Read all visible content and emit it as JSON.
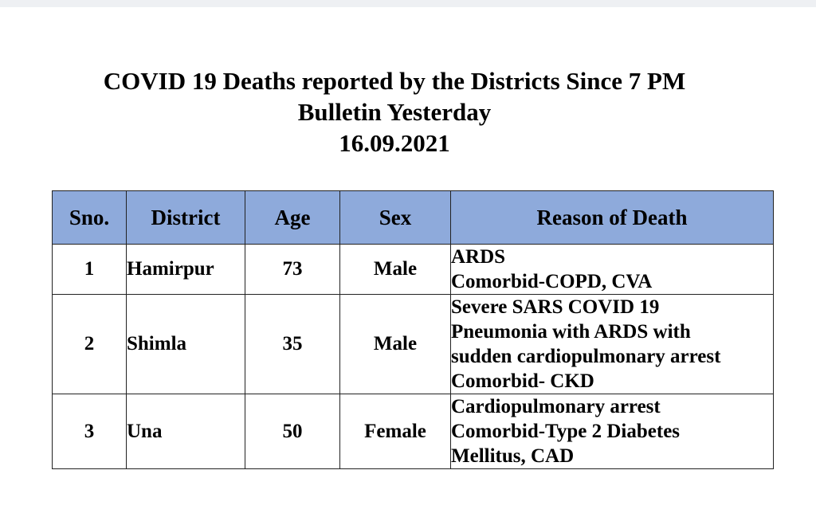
{
  "title": {
    "line1": "COVID 19 Deaths reported by the Districts Since 7 PM",
    "line2": "Bulletin Yesterday",
    "date": "16.09.2021"
  },
  "table": {
    "headers": [
      "Sno.",
      "District",
      "Age",
      "Sex",
      "Reason of Death"
    ],
    "rows": [
      {
        "sno": "1",
        "district": "Hamirpur",
        "age": "73",
        "sex": "Male",
        "reason_lines": [
          "ARDS",
          "Comorbid-COPD, CVA"
        ]
      },
      {
        "sno": "2",
        "district": "Shimla",
        "age": "35",
        "sex": "Male",
        "reason_lines": [
          "Severe SARS COVID 19",
          "Pneumonia with ARDS with",
          "sudden cardiopulmonary arrest",
          "Comorbid- CKD"
        ]
      },
      {
        "sno": "3",
        "district": "Una",
        "age": "50",
        "sex": "Female",
        "reason_lines": [
          "Cardiopulmonary arrest",
          "Comorbid-Type 2 Diabetes",
          "Mellitus, CAD"
        ]
      }
    ]
  },
  "colors": {
    "header_fill": "#8eaadb",
    "top_strip": "#eef0f3"
  }
}
